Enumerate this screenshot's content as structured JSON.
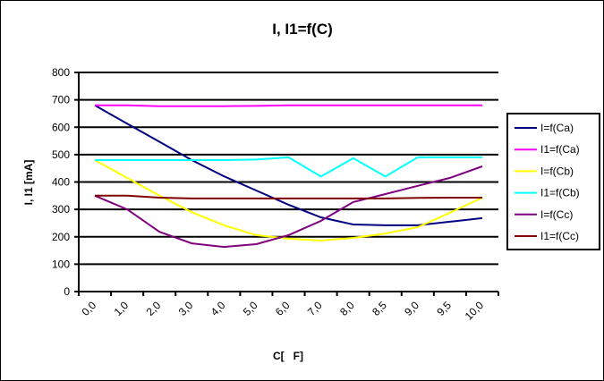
{
  "chart_data": {
    "type": "line",
    "title": "I, I1=f(C)",
    "xlabel": "C[   F]",
    "ylabel": "I, I1 [mA]",
    "ylim": [
      0,
      800
    ],
    "yticks": [
      0,
      100,
      200,
      300,
      400,
      500,
      600,
      700,
      800
    ],
    "grid": true,
    "legend_position": "right",
    "categories": [
      "0,0",
      "1,0",
      "2,0",
      "3,0",
      "4,0",
      "5,0",
      "6,0",
      "7,0",
      "8,0",
      "8,5",
      "9,0",
      "9,5",
      "10,0"
    ],
    "series": [
      {
        "name": "I=f(Ca)",
        "color": "#000080",
        "values": [
          680,
          613,
          547,
          480,
          421,
          369,
          317,
          271,
          245,
          242,
          242,
          255,
          268
        ]
      },
      {
        "name": "I1=f(Ca)",
        "color": "#ff00ff",
        "values": [
          680,
          680,
          677,
          677,
          677,
          678,
          680,
          680,
          680,
          680,
          680,
          680,
          680
        ]
      },
      {
        "name": "I=f(Cb)",
        "color": "#ffff00",
        "values": [
          480,
          415,
          350,
          290,
          242,
          206,
          193,
          186,
          196,
          212,
          235,
          288,
          343
        ]
      },
      {
        "name": "I1=f(Cb)",
        "color": "#00ffff",
        "values": [
          480,
          480,
          480,
          480,
          480,
          482,
          490,
          420,
          487,
          420,
          490,
          490,
          490
        ]
      },
      {
        "name": "I=f(Cc)",
        "color": "#800080",
        "values": [
          350,
          300,
          218,
          176,
          163,
          173,
          206,
          258,
          327,
          356,
          386,
          415,
          457
        ]
      },
      {
        "name": "I1=f(Cc)",
        "color": "#800000",
        "values": [
          350,
          350,
          343,
          340,
          340,
          340,
          340,
          340,
          340,
          340,
          342,
          343,
          343
        ]
      }
    ]
  }
}
